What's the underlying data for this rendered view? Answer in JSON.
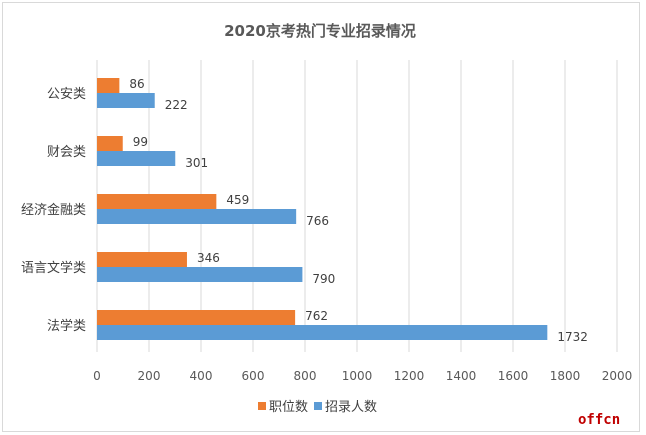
{
  "chart_data": {
    "type": "bar",
    "orientation": "horizontal",
    "title": "2020京考热门专业招录情况",
    "categories": [
      "公安类",
      "财会类",
      "经济金融类",
      "语言文学类",
      "法学类"
    ],
    "series": [
      {
        "name": "职位数",
        "values": [
          86,
          99,
          459,
          346,
          762
        ],
        "color": "#ed7d31"
      },
      {
        "name": "招录人数",
        "values": [
          222,
          301,
          766,
          790,
          1732
        ],
        "color": "#5b9bd5"
      }
    ],
    "xlim": [
      0,
      2000
    ],
    "xticks": [
      0,
      200,
      400,
      600,
      800,
      1000,
      1200,
      1400,
      1600,
      1800,
      2000
    ],
    "grid": true,
    "data_labels": true,
    "legend": "bottom"
  },
  "watermark": "offcn"
}
